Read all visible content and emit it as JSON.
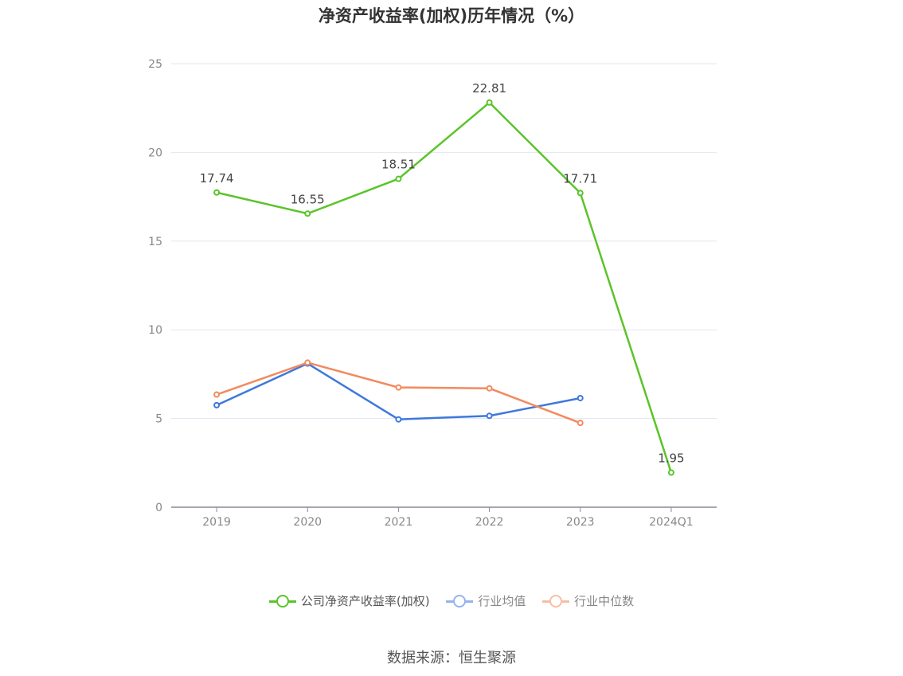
{
  "title": "净资产收益率(加权)历年情况（%）",
  "source": "数据来源：恒生聚源",
  "chart_data": {
    "type": "line",
    "categories": [
      "2019",
      "2020",
      "2021",
      "2022",
      "2023",
      "2024Q1"
    ],
    "ylim": [
      0,
      25
    ],
    "yticks": [
      0,
      5,
      10,
      15,
      20,
      25
    ],
    "grid": true,
    "legend_position": "bottom",
    "series": [
      {
        "name": "公司净资产收益率(加权)",
        "color": "#5ac42a",
        "values": [
          17.74,
          16.55,
          18.51,
          22.81,
          17.71,
          1.95
        ],
        "labels": [
          "17.74",
          "16.55",
          "18.51",
          "22.81",
          "17.71",
          "1.95"
        ]
      },
      {
        "name": "行业均值",
        "color": "#3f78dd",
        "values": [
          5.75,
          8.1,
          4.95,
          5.15,
          6.15,
          null
        ]
      },
      {
        "name": "行业中位数",
        "color": "#f28a5e",
        "values": [
          6.35,
          8.15,
          6.75,
          6.7,
          4.75,
          null
        ]
      }
    ]
  }
}
